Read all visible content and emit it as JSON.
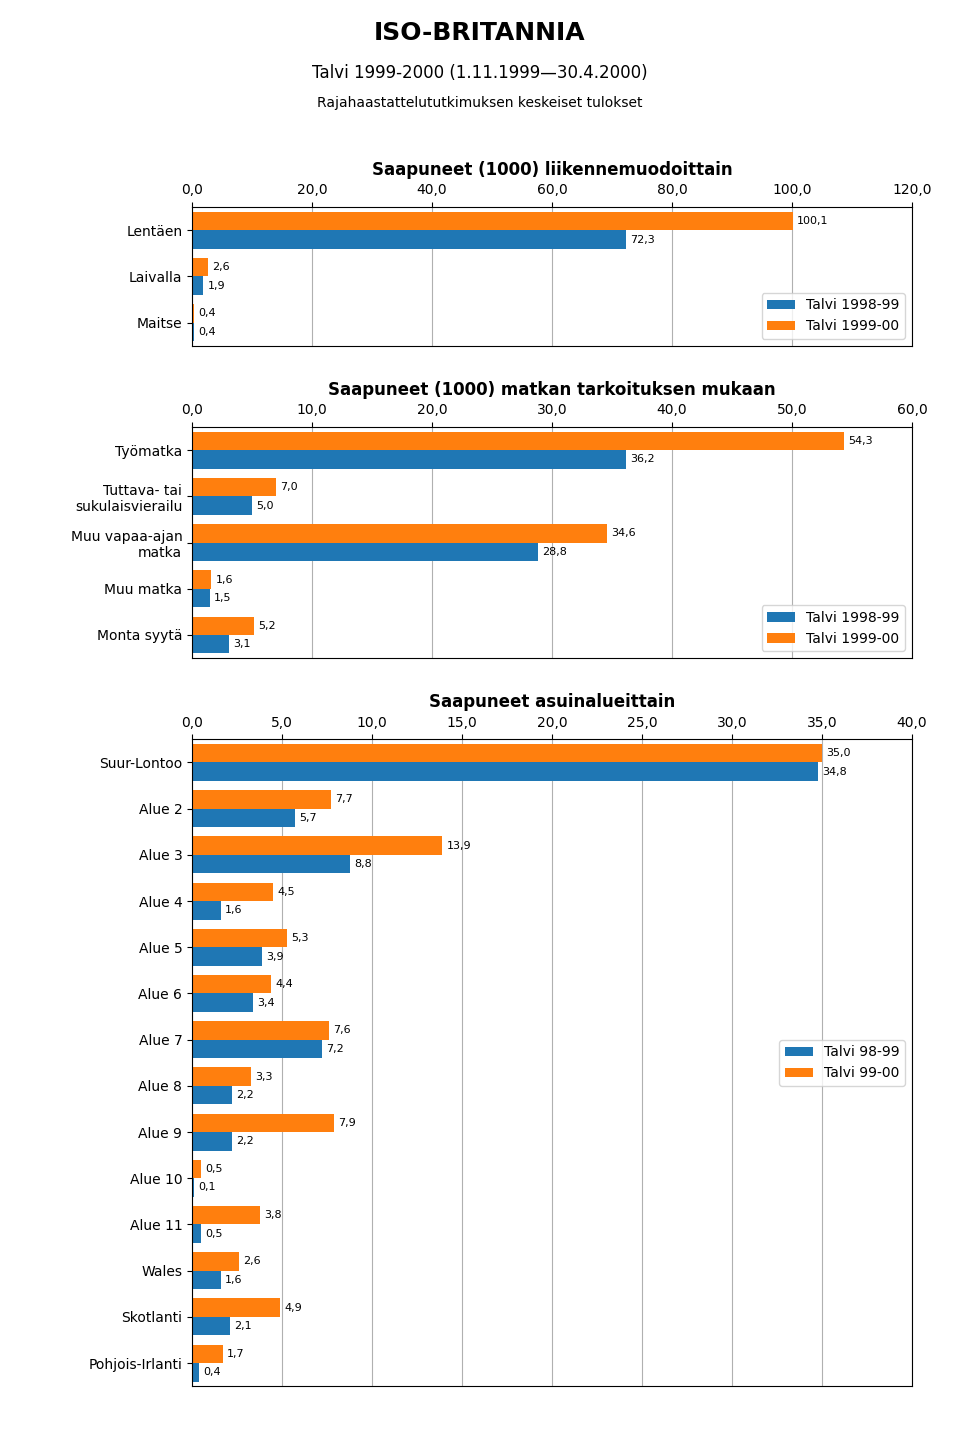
{
  "title": "ISO-BRITANNIA",
  "subtitle": "Talvi 1999-2000 (1.11.1999—30.4.2000)",
  "annotations": [
    "Rajahaastattelututkimuksen keskeiset tulokset"
  ],
  "chart_data": [
    {
      "type": "bar",
      "orientation": "horizontal",
      "title": "Saapuneet (1000) liikennemuodoittain",
      "categories": [
        "Lentäen",
        "Laivalla",
        "Maitse"
      ],
      "series": [
        {
          "name": "Talvi 1998-99",
          "values": [
            72.3,
            1.9,
            0.4
          ],
          "value_labels": [
            "72,3",
            "1,9",
            "0,4"
          ]
        },
        {
          "name": "Talvi 1999-00",
          "values": [
            100.1,
            2.6,
            0.4
          ],
          "value_labels": [
            "100,1",
            "2,6",
            "0,4"
          ]
        }
      ],
      "xlim": [
        0,
        120
      ],
      "xticks": [
        {
          "value": 0,
          "label": "0,0"
        },
        {
          "value": 20,
          "label": "20,0"
        },
        {
          "value": 40,
          "label": "40,0"
        },
        {
          "value": 60,
          "label": "60,0"
        },
        {
          "value": 80,
          "label": "80,0"
        },
        {
          "value": 100,
          "label": "100,0"
        },
        {
          "value": 120,
          "label": "120,0"
        }
      ],
      "grid": true,
      "legend": "lower right",
      "data_labels": true
    },
    {
      "type": "bar",
      "orientation": "horizontal",
      "title": "Saapuneet (1000) matkan tarkoituksen mukaan",
      "categories": [
        "Työmatka",
        "Tuttava- tai\nsukulaisvierailu",
        "Muu vapaa-ajan\nmatka",
        "Muu matka",
        "Monta syytä"
      ],
      "series": [
        {
          "name": "Talvi 1998-99",
          "values": [
            36.2,
            5.0,
            28.8,
            1.5,
            3.1
          ],
          "value_labels": [
            "36,2",
            "5,0",
            "28,8",
            "1,5",
            "3,1"
          ]
        },
        {
          "name": "Talvi 1999-00",
          "values": [
            54.3,
            7.0,
            34.6,
            1.6,
            5.2
          ],
          "value_labels": [
            "54,3",
            "7,0",
            "34,6",
            "1,6",
            "5,2"
          ]
        }
      ],
      "xlim": [
        0,
        60
      ],
      "xticks": [
        {
          "value": 0,
          "label": "0,0"
        },
        {
          "value": 10,
          "label": "10,0"
        },
        {
          "value": 20,
          "label": "20,0"
        },
        {
          "value": 30,
          "label": "30,0"
        },
        {
          "value": 40,
          "label": "40,0"
        },
        {
          "value": 50,
          "label": "50,0"
        },
        {
          "value": 60,
          "label": "60,0"
        }
      ],
      "grid": true,
      "legend": "lower right",
      "data_labels": true
    },
    {
      "type": "bar",
      "orientation": "horizontal",
      "title": "Saapuneet asuinalueittain",
      "categories": [
        "Suur-Lontoo",
        "Alue 2",
        "Alue 3",
        "Alue 4",
        "Alue 5",
        "Alue 6",
        "Alue 7",
        "Alue 8",
        "Alue 9",
        "Alue 10",
        "Alue 11",
        "Wales",
        "Skotlanti",
        "Pohjois-Irlanti"
      ],
      "series": [
        {
          "name": "Talvi 98-99",
          "values": [
            34.8,
            5.7,
            8.8,
            1.6,
            3.9,
            3.4,
            7.2,
            2.2,
            2.2,
            0.1,
            0.5,
            1.6,
            2.1,
            0.4
          ],
          "value_labels": [
            "34,8",
            "5,7",
            "8,8",
            "1,6",
            "3,9",
            "3,4",
            "7,2",
            "2,2",
            "2,2",
            "0,1",
            "0,5",
            "1,6",
            "2,1",
            "0,4"
          ]
        },
        {
          "name": "Talvi 99-00",
          "values": [
            35.0,
            7.7,
            13.9,
            4.5,
            5.3,
            4.4,
            7.6,
            3.3,
            7.9,
            0.5,
            3.8,
            2.6,
            4.9,
            1.7
          ],
          "value_labels": [
            "35,0",
            "7,7",
            "13,9",
            "4,5",
            "5,3",
            "4,4",
            "7,6",
            "3,3",
            "7,9",
            "0,5",
            "3,8",
            "2,6",
            "4,9",
            "1,7"
          ]
        }
      ],
      "xlim": [
        0,
        40
      ],
      "xticks": [
        {
          "value": 0,
          "label": "0,0"
        },
        {
          "value": 5,
          "label": "5,0"
        },
        {
          "value": 10,
          "label": "10,0"
        },
        {
          "value": 15,
          "label": "15,0"
        },
        {
          "value": 20,
          "label": "20,0"
        },
        {
          "value": 25,
          "label": "25,0"
        },
        {
          "value": 30,
          "label": "30,0"
        },
        {
          "value": 35,
          "label": "35,0"
        },
        {
          "value": 40,
          "label": "40,0"
        }
      ],
      "grid": true,
      "legend": "center right",
      "data_labels": true
    }
  ]
}
